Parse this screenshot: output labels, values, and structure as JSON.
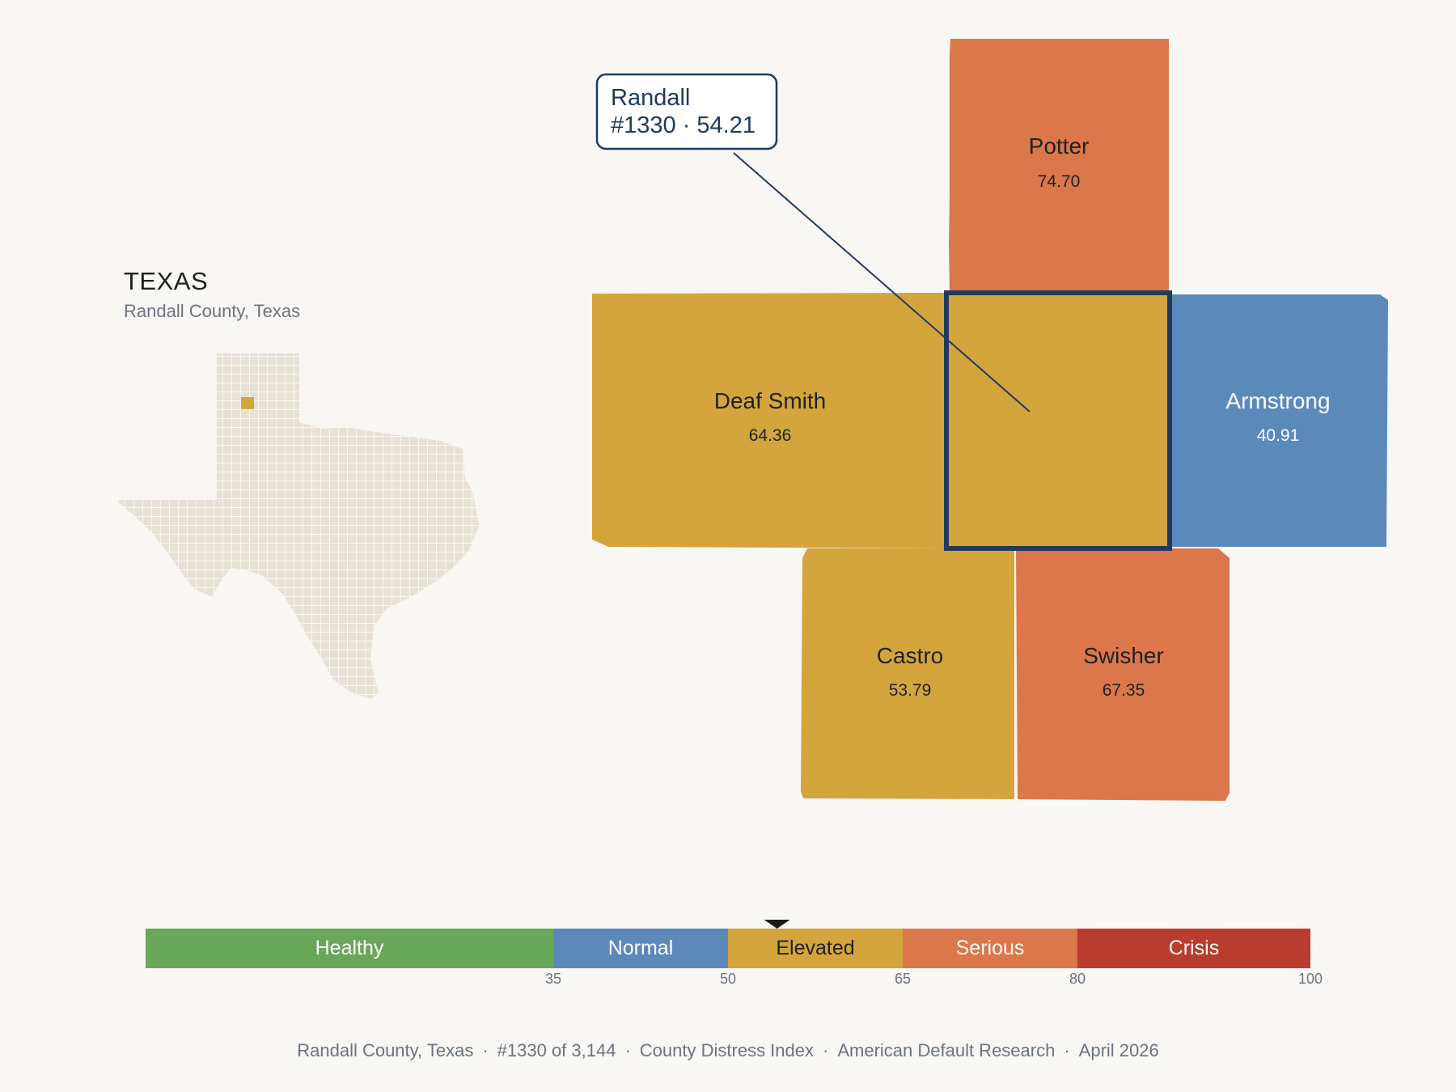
{
  "state": {
    "title": "TEXAS",
    "subtitle": "Randall County, Texas"
  },
  "callout": {
    "name": "Randall",
    "detail": "#1330 · 54.21"
  },
  "counties": [
    {
      "id": "potter",
      "name": "Potter",
      "value": "74.70",
      "color": "#db774a"
    },
    {
      "id": "deaf-smith",
      "name": "Deaf Smith",
      "value": "64.36",
      "color": "#d4a53c"
    },
    {
      "id": "randall",
      "name": "Randall",
      "value": "54.21",
      "color": "#d4a53c"
    },
    {
      "id": "armstrong",
      "name": "Armstrong",
      "value": "40.91",
      "color": "#5b8aba"
    },
    {
      "id": "castro",
      "name": "Castro",
      "value": "53.79",
      "color": "#d4a53c"
    },
    {
      "id": "swisher",
      "name": "Swisher",
      "value": "67.35",
      "color": "#db774a"
    }
  ],
  "legend": {
    "bands": [
      {
        "label": "Healthy",
        "color": "#68a858"
      },
      {
        "label": "Normal",
        "color": "#5b8aba"
      },
      {
        "label": "Elevated",
        "color": "#d4a53c"
      },
      {
        "label": "Serious",
        "color": "#db774a"
      },
      {
        "label": "Crisis",
        "color": "#b93c2c"
      }
    ],
    "ticks": [
      "35",
      "50",
      "65",
      "80",
      "100"
    ],
    "marker_value": 54.21
  },
  "footer": {
    "county": "Randall County, Texas",
    "rank": "#1330 of 3,144",
    "index": "County Distress Index",
    "source": "American Default Research",
    "date": "April 2026"
  },
  "colors": {
    "highlight_outline": "#213a5c",
    "state_fill": "#e8e2d6"
  }
}
